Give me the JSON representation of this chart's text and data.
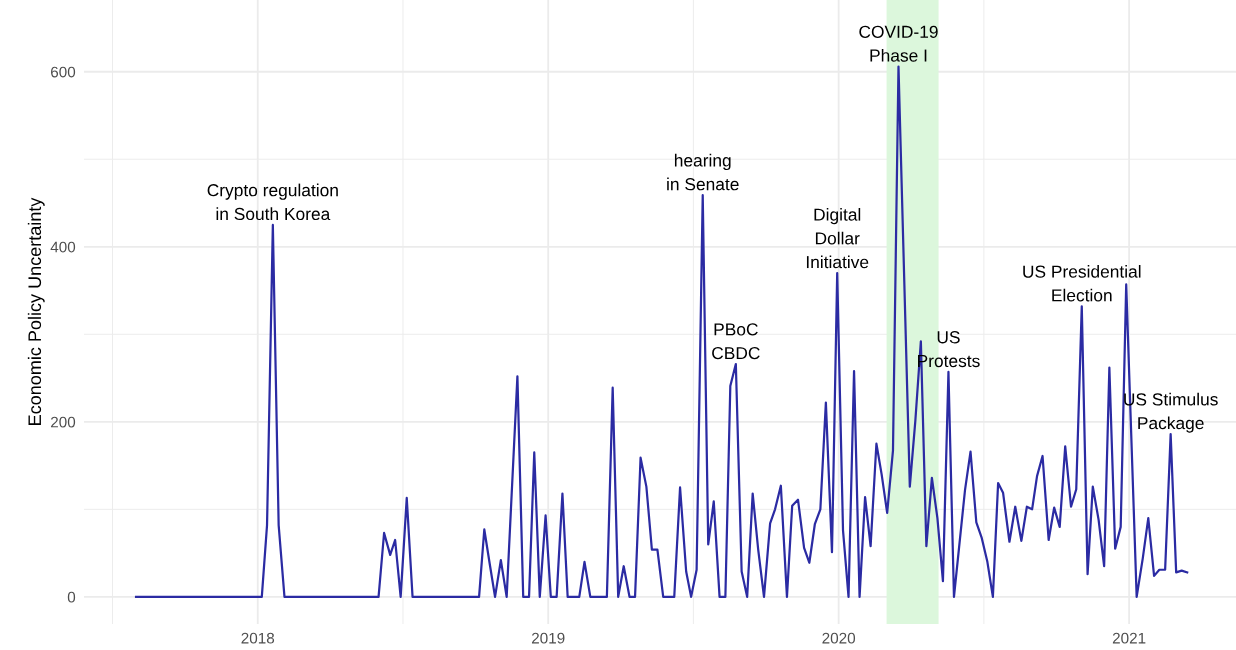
{
  "chart_data": {
    "type": "line",
    "ylabel": "Economic Policy Uncertainty",
    "x": [
      2017.581,
      2018.014,
      2018.032,
      2018.052,
      2018.072,
      2018.092,
      2018.416,
      2018.435,
      2018.456,
      2018.473,
      2018.492,
      2018.513,
      2018.533,
      2018.762,
      2018.78,
      2018.8,
      2018.817,
      2018.837,
      2018.857,
      2018.894,
      2018.914,
      2018.934,
      2018.952,
      2018.971,
      2018.991,
      2019.009,
      2019.029,
      2019.049,
      2019.067,
      2019.087,
      2019.107,
      2019.125,
      2019.145,
      2019.202,
      2019.222,
      2019.241,
      2019.26,
      2019.28,
      2019.299,
      2019.318,
      2019.338,
      2019.357,
      2019.376,
      2019.396,
      2019.434,
      2019.454,
      2019.475,
      2019.492,
      2019.511,
      2019.532,
      2019.551,
      2019.57,
      2019.59,
      2019.61,
      2019.627,
      2019.646,
      2019.666,
      2019.685,
      2019.704,
      2019.723,
      2019.743,
      2019.764,
      2019.781,
      2019.801,
      2019.822,
      2019.84,
      2019.86,
      2019.881,
      2019.899,
      2019.918,
      2019.937,
      2019.956,
      2019.977,
      2019.995,
      2020.015,
      2020.034,
      2020.053,
      2020.072,
      2020.091,
      2020.11,
      2020.13,
      2020.148,
      2020.167,
      2020.187,
      2020.206,
      2020.245,
      2020.264,
      2020.283,
      2020.302,
      2020.321,
      2020.34,
      2020.359,
      2020.378,
      2020.397,
      2020.435,
      2020.454,
      2020.474,
      2020.492,
      2020.512,
      2020.531,
      2020.549,
      2020.566,
      2020.588,
      2020.608,
      2020.629,
      2020.648,
      2020.666,
      2020.683,
      2020.702,
      2020.723,
      2020.742,
      2020.761,
      2020.78,
      2020.8,
      2020.818,
      2020.837,
      2020.857,
      2020.875,
      2020.895,
      2020.914,
      2020.932,
      2020.952,
      2020.971,
      2020.99,
      2021.026,
      2021.047,
      2021.066,
      2021.086,
      2021.104,
      2021.124,
      2021.143,
      2021.162,
      2021.181,
      2021.2
    ],
    "series": [
      {
        "color": "#2b2ba3",
        "values": [
          0,
          0,
          82,
          425,
          82,
          0,
          0,
          73,
          48,
          65,
          0,
          113,
          0,
          0,
          77,
          35,
          0,
          42,
          0,
          252,
          0,
          0,
          165,
          0,
          93,
          0,
          0,
          118,
          0,
          0,
          0,
          40,
          0,
          0,
          239,
          0,
          35,
          0,
          0,
          159,
          126,
          54,
          54,
          0,
          0,
          125,
          29,
          0,
          31,
          459,
          60,
          109,
          0,
          0,
          241,
          266,
          29,
          0,
          118,
          54,
          0,
          84,
          100,
          127,
          0,
          104,
          111,
          56,
          39,
          83,
          100,
          222,
          51,
          370,
          76,
          0,
          258,
          0,
          114,
          58,
          175,
          140,
          96,
          167,
          606,
          126,
          201,
          292,
          58,
          136,
          90,
          18,
          257,
          0,
          122,
          166,
          85,
          68,
          40,
          0,
          130,
          119,
          63,
          103,
          64,
          103,
          100,
          138,
          161,
          65,
          102,
          80,
          172,
          103,
          123,
          332,
          26,
          126,
          88,
          35,
          262,
          55,
          80,
          357,
          0,
          44,
          90,
          24,
          31,
          31,
          186,
          28,
          30,
          28
        ]
      }
    ],
    "xlim": [
      2017.402,
      2021.368
    ],
    "ylim": [
      -31,
      682
    ],
    "xticks": [
      {
        "value": 2017.5,
        "label": null
      },
      2018,
      {
        "value": 2018.5,
        "label": null
      },
      2019,
      {
        "value": 2019.5,
        "label": null
      },
      2020,
      {
        "value": 2020.5,
        "label": null
      },
      2021
    ],
    "yticks": [
      0,
      {
        "value": 100,
        "label": null
      },
      200,
      {
        "value": 300,
        "label": null
      },
      400,
      {
        "value": 500,
        "label": null
      },
      600
    ],
    "grid": true,
    "line_style": "solid",
    "bands": [
      {
        "axis": "x",
        "from": 2020.165,
        "to": 2020.344,
        "color": "#dcf7dc"
      }
    ],
    "annotations": [
      {
        "text": "Crypto regulation\nin South Korea",
        "x": 2018.052,
        "y": 425
      },
      {
        "text": "hearing\nin Senate",
        "x": 2019.532,
        "y": 459
      },
      {
        "text": "PBoC\nCBDC",
        "x": 2019.646,
        "y": 266
      },
      {
        "text": "Digital\nDollar\nInitiative",
        "x": 2019.995,
        "y": 370
      },
      {
        "text": "COVID-19\nPhase I",
        "x": 2020.206,
        "y": 606
      },
      {
        "text": "US\nProtests",
        "x": 2020.378,
        "y": 257
      },
      {
        "text": "US Presidential\nElection",
        "x": 2020.837,
        "y": 332
      },
      {
        "text": "US Stimulus\nPackage",
        "x": 2021.143,
        "y": 186
      }
    ]
  }
}
